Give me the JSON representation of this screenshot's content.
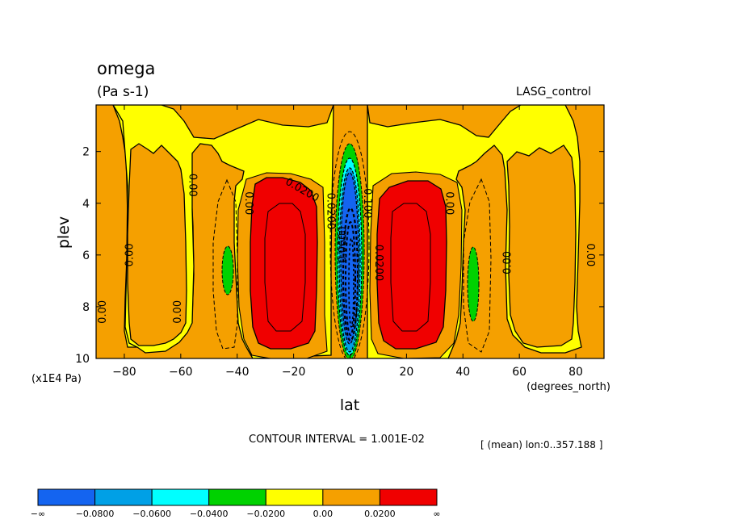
{
  "chart_data": {
    "type": "heatmap",
    "title": "omega",
    "units": "(Pa s-1)",
    "dataset": "LASG_control",
    "xlabel": "lat",
    "x_units": "(degrees_north)",
    "ylabel": "plev",
    "y_units": "(x1E4 Pa)",
    "xlim": [
      -90,
      90
    ],
    "ylim": [
      10,
      0.2
    ],
    "y_inverted": true,
    "x_ticks": [
      -80,
      -60,
      -40,
      -20,
      0,
      20,
      40,
      60,
      80
    ],
    "x_tick_labels": [
      "−80",
      "−60",
      "−40",
      "−20",
      "0",
      "20",
      "40",
      "60",
      "80"
    ],
    "y_ticks": [
      2,
      4,
      6,
      8,
      10
    ],
    "y_tick_labels": [
      "2",
      "4",
      "6",
      "8",
      "10"
    ],
    "contour_interval_text": "CONTOUR INTERVAL = 1.001E-02",
    "averaging_text": "[ (mean) lon:0..357.188 ]",
    "contour_labels": [
      {
        "text": "0.00",
        "lat": -87.5,
        "plev": 8.2,
        "rotate": -90
      },
      {
        "text": "0.00",
        "lat": -78,
        "plev": 6.0,
        "rotate": -90
      },
      {
        "text": "0.00",
        "lat": -61,
        "plev": 8.2,
        "rotate": -90
      },
      {
        "text": "0.00",
        "lat": -56,
        "plev": 3.3,
        "rotate": 90
      },
      {
        "text": "0.00",
        "lat": -36,
        "plev": 4.0,
        "rotate": 90
      },
      {
        "text": "0.0200",
        "lat": -17,
        "plev": 3.5,
        "rotate": 30
      },
      {
        "text": "0.0200",
        "lat": -7,
        "plev": 4.3,
        "rotate": 90
      },
      {
        "text": "0.0600",
        "lat": -2.5,
        "plev": 5.6,
        "rotate": -90
      },
      {
        "text": "0.100",
        "lat": 6,
        "plev": 4.0,
        "rotate": 90
      },
      {
        "text": "0.0200",
        "lat": 10,
        "plev": 6.3,
        "rotate": 90
      },
      {
        "text": "0.00",
        "lat": 35,
        "plev": 4.0,
        "rotate": 90
      },
      {
        "text": "0.00",
        "lat": 56,
        "plev": 6.3,
        "rotate": -90
      },
      {
        "text": "0.00",
        "lat": 85,
        "plev": 6.0,
        "rotate": 90
      }
    ],
    "colorbar": {
      "levels": [
        "−∞",
        "−0.0800",
        "−0.0600",
        "−0.0400",
        "−0.0200",
        "0.00",
        "0.0200",
        "∞"
      ],
      "colors": [
        "#1464f0",
        "#00a0e6",
        "#00ffff",
        "#00d200",
        "#ffff00",
        "#f5a000",
        "#f00000"
      ]
    },
    "colors": {
      "blue": "#1464f0",
      "green": "#00d200",
      "yellow": "#ffff00",
      "orange": "#f5a000",
      "red": "#f00000",
      "cyan": "#00ffff",
      "lightblue": "#00a0e6"
    },
    "grid": false,
    "legend": "bottom (colorbar)"
  }
}
